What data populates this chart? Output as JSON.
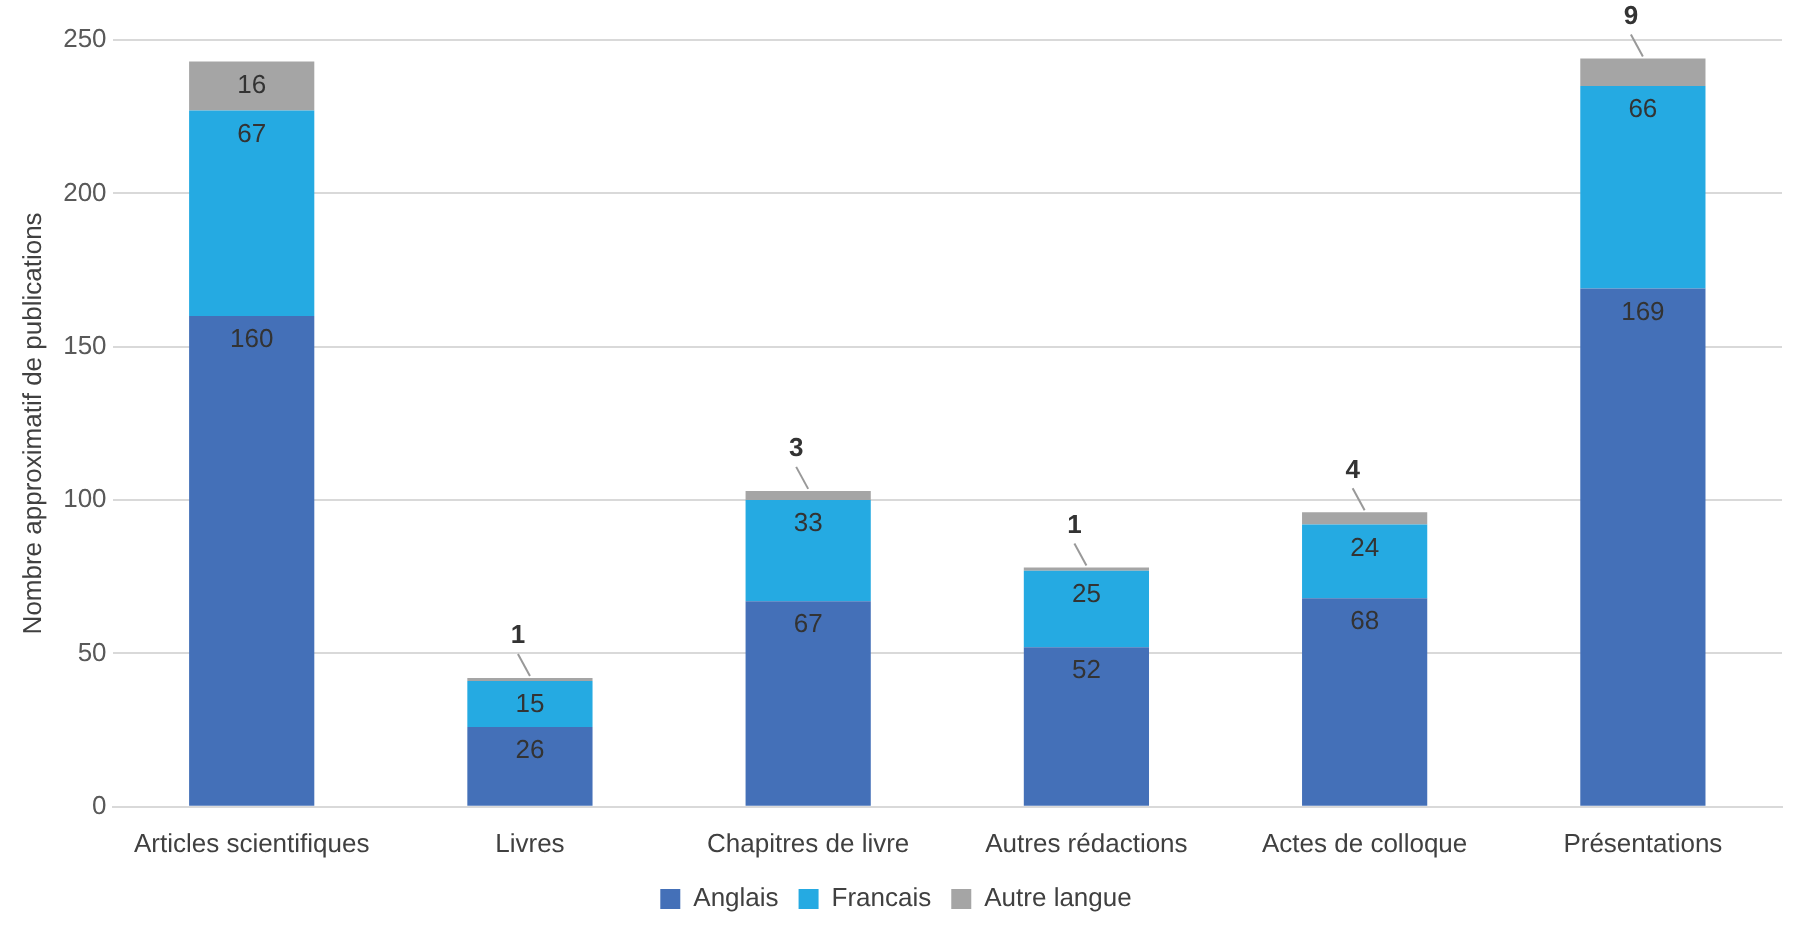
{
  "chart_data": {
    "type": "bar",
    "stacked": true,
    "ylabel": "Nombre approximatif de publications",
    "categories": [
      "Articles scientifiques",
      "Livres",
      "Chapitres de livre",
      "Autres rédactions",
      "Actes de colloque",
      "Présentations"
    ],
    "series": [
      {
        "name": "Anglais",
        "color": "#4470b8",
        "values": [
          160,
          26,
          67,
          52,
          68,
          169
        ]
      },
      {
        "name": "Francais",
        "color": "#25aae2",
        "values": [
          67,
          15,
          33,
          25,
          24,
          66
        ]
      },
      {
        "name": "Autre langue",
        "color": "#a5a5a5",
        "values": [
          16,
          1,
          3,
          1,
          4,
          9
        ]
      }
    ],
    "ylim": [
      0,
      250
    ],
    "yticks": [
      0,
      50,
      100,
      150,
      200,
      250
    ],
    "grid": "y",
    "legend": "bottom",
    "data_labels": true
  }
}
